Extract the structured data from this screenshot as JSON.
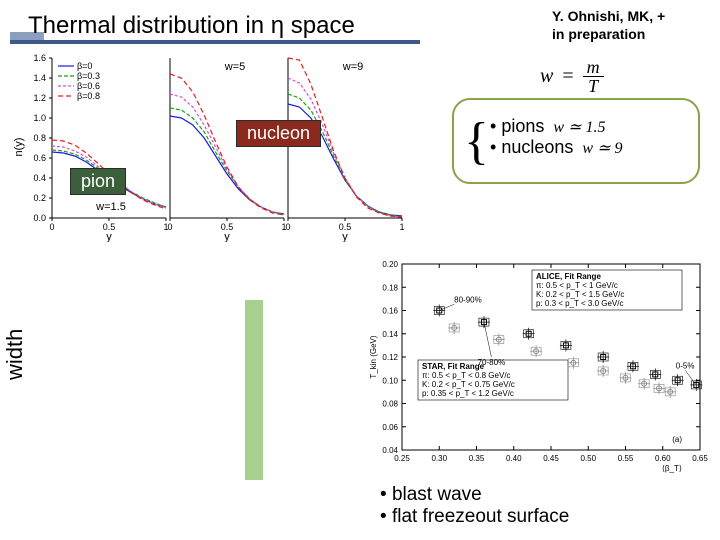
{
  "title": "Thermal distribution in η space",
  "citation_line1": "Y. Ohnishi, MK, +",
  "citation_line2": "in preparation",
  "formula": {
    "lhs": "w",
    "eq": "=",
    "num": "m",
    "den": "T"
  },
  "callouts": {
    "nucleon": "nucleon",
    "pion": "pion"
  },
  "bullets_top": {
    "items": [
      {
        "label": "pions",
        "w_expr": "w ≃ 1.5"
      },
      {
        "label": "nucleons",
        "w_expr": "w ≃ 9"
      }
    ]
  },
  "width_label": "width",
  "bottom_bullets": [
    "blast wave",
    "flat freezeout surface"
  ],
  "top_chart": {
    "type": "line",
    "ylabel": "n(y)",
    "xlabel": "y",
    "ylim": [
      0,
      1.6
    ],
    "ytick_step": 0.2,
    "xlim": [
      0,
      1
    ],
    "xtick_step": 0.5,
    "panel_labels": [
      "w=1.5",
      "w=5",
      "w=9"
    ],
    "legend": [
      {
        "label": "β=0",
        "color": "#1a1adf",
        "dash": ""
      },
      {
        "label": "β=0.3",
        "color": "#18a018",
        "dash": "4,2"
      },
      {
        "label": "β=0.6",
        "color": "#d452d4",
        "dash": "3,2"
      },
      {
        "label": "β=0.8",
        "color": "#e02020",
        "dash": "5,3"
      }
    ],
    "panels": [
      {
        "series": [
          {
            "color": "#1a1adf",
            "dash": "",
            "y": [
              0.66,
              0.65,
              0.62,
              0.56,
              0.48,
              0.4,
              0.32,
              0.25,
              0.19,
              0.14,
              0.11
            ]
          },
          {
            "color": "#18a018",
            "dash": "4,2",
            "y": [
              0.68,
              0.67,
              0.64,
              0.58,
              0.5,
              0.42,
              0.34,
              0.26,
              0.2,
              0.15,
              0.11
            ]
          },
          {
            "color": "#d452d4",
            "dash": "3,2",
            "y": [
              0.72,
              0.71,
              0.67,
              0.61,
              0.52,
              0.43,
              0.34,
              0.26,
              0.19,
              0.14,
              0.1
            ]
          },
          {
            "color": "#e02020",
            "dash": "5,3",
            "y": [
              0.78,
              0.77,
              0.73,
              0.65,
              0.55,
              0.44,
              0.34,
              0.25,
              0.18,
              0.13,
              0.09
            ]
          }
        ]
      },
      {
        "series": [
          {
            "color": "#1a1adf",
            "dash": "",
            "y": [
              1.02,
              1.0,
              0.93,
              0.8,
              0.62,
              0.44,
              0.29,
              0.18,
              0.11,
              0.06,
              0.04
            ]
          },
          {
            "color": "#18a018",
            "dash": "4,2",
            "y": [
              1.1,
              1.08,
              1.0,
              0.86,
              0.66,
              0.47,
              0.31,
              0.19,
              0.11,
              0.06,
              0.04
            ]
          },
          {
            "color": "#d452d4",
            "dash": "3,2",
            "y": [
              1.24,
              1.21,
              1.11,
              0.93,
              0.71,
              0.49,
              0.31,
              0.19,
              0.11,
              0.06,
              0.03
            ]
          },
          {
            "color": "#e02020",
            "dash": "5,3",
            "y": [
              1.44,
              1.4,
              1.26,
              1.03,
              0.76,
              0.51,
              0.31,
              0.18,
              0.1,
              0.05,
              0.03
            ]
          }
        ]
      },
      {
        "series": [
          {
            "color": "#1a1adf",
            "dash": "",
            "y": [
              1.14,
              1.11,
              1.0,
              0.82,
              0.59,
              0.38,
              0.22,
              0.12,
              0.06,
              0.03,
              0.02
            ]
          },
          {
            "color": "#18a018",
            "dash": "4,2",
            "y": [
              1.24,
              1.2,
              1.08,
              0.87,
              0.62,
              0.39,
              0.22,
              0.12,
              0.06,
              0.03,
              0.01
            ]
          },
          {
            "color": "#d452d4",
            "dash": "3,2",
            "y": [
              1.4,
              1.35,
              1.19,
              0.94,
              0.65,
              0.4,
              0.22,
              0.11,
              0.05,
              0.02,
              0.01
            ]
          },
          {
            "color": "#e02020",
            "dash": "5,3",
            "y": [
              1.6,
              1.58,
              1.34,
              1.01,
              0.67,
              0.4,
              0.21,
              0.1,
              0.05,
              0.02,
              0.01
            ]
          }
        ]
      }
    ]
  },
  "br_chart": {
    "type": "scatter",
    "ylabel": "T_kin (GeV)",
    "xlabel": "⟨β_T⟩",
    "xlim": [
      0.25,
      0.65
    ],
    "xtick_step": 0.05,
    "ylim": [
      0.04,
      0.2
    ],
    "yticks": [
      0.04,
      0.06,
      0.08,
      0.1,
      0.12,
      0.14,
      0.16,
      0.18,
      0.2
    ],
    "panel_tag": "(a)",
    "boxes": [
      {
        "label": "ALICE, Fit Range",
        "lines": [
          "π: 0.5 < p_T < 1 GeV/c",
          "K: 0.2 < p_T < 1.5 GeV/c",
          "p: 0.3 < p_T < 3.0 GeV/c"
        ]
      },
      {
        "label": "STAR, Fit Range",
        "lines": [
          "π: 0.5 < p_T < 0.8 GeV/c",
          "K: 0.2 < p_T < 0.75 GeV/c",
          "p: 0.35 < p_T < 1.2 GeV/c"
        ]
      }
    ],
    "annot": [
      "80-90%",
      "70-80%",
      "0-5%"
    ],
    "series": [
      {
        "name": "ALICE",
        "marker": "square",
        "color": "#000000",
        "points": [
          {
            "x": 0.3,
            "y": 0.16
          },
          {
            "x": 0.36,
            "y": 0.15
          },
          {
            "x": 0.42,
            "y": 0.14
          },
          {
            "x": 0.47,
            "y": 0.13
          },
          {
            "x": 0.52,
            "y": 0.12
          },
          {
            "x": 0.56,
            "y": 0.112
          },
          {
            "x": 0.59,
            "y": 0.105
          },
          {
            "x": 0.62,
            "y": 0.1
          },
          {
            "x": 0.645,
            "y": 0.096
          }
        ]
      },
      {
        "name": "STAR",
        "marker": "circle",
        "color": "#888888",
        "points": [
          {
            "x": 0.32,
            "y": 0.145
          },
          {
            "x": 0.38,
            "y": 0.135
          },
          {
            "x": 0.43,
            "y": 0.125
          },
          {
            "x": 0.48,
            "y": 0.115
          },
          {
            "x": 0.52,
            "y": 0.108
          },
          {
            "x": 0.55,
            "y": 0.102
          },
          {
            "x": 0.575,
            "y": 0.097
          },
          {
            "x": 0.595,
            "y": 0.093
          },
          {
            "x": 0.61,
            "y": 0.09
          }
        ]
      }
    ]
  }
}
